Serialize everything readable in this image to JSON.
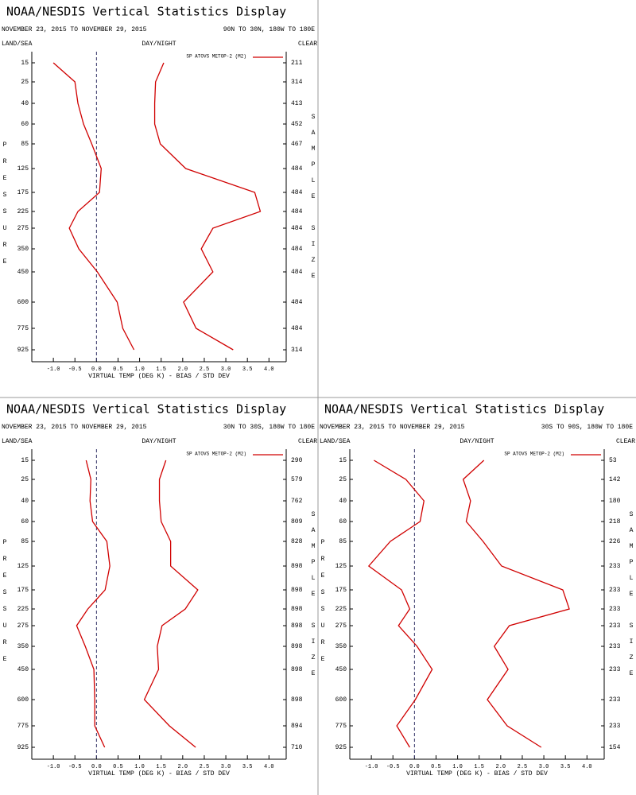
{
  "chart_data": [
    {
      "type": "line",
      "title": "NOAA/NESDIS Vertical Statistics Display",
      "subtitle": "NOVEMBER 23, 2015 TO NOVEMBER 29, 2015",
      "region": "90N TO 30N, 180W TO 180E",
      "land_sea": "LAND/SEA",
      "day_night": "DAY/NIGHT",
      "clear": "CLEAR",
      "ylabel": "PRESSURE",
      "y2label": "SAMPLE SIZE",
      "xlabel": "VIRTUAL TEMP (DEG K) - BIAS / STD DEV",
      "categories": [
        15,
        25,
        40,
        60,
        85,
        125,
        175,
        225,
        275,
        350,
        450,
        600,
        775,
        925
      ],
      "sample_size": [
        211,
        314,
        413,
        452,
        467,
        484,
        484,
        484,
        484,
        484,
        484,
        484,
        484,
        314
      ],
      "series": [
        {
          "name": "SP ATOVS METOP-2 (M2)",
          "color": "#d00000",
          "bias": [
            -1.0,
            -0.5,
            -0.43,
            -0.3,
            -0.11,
            0.11,
            0.07,
            -0.43,
            -0.63,
            -0.41,
            0.02,
            0.48,
            0.61,
            0.87
          ],
          "std_dev": [
            1.56,
            1.37,
            1.35,
            1.35,
            1.48,
            2.07,
            3.67,
            3.8,
            2.7,
            2.43,
            2.7,
            2.02,
            2.31,
            3.17
          ]
        }
      ],
      "xlim": [
        -1.5,
        4.4
      ],
      "xticks": [
        {
          "value": -1,
          "label": "-1.0"
        },
        -0.5,
        {
          "value": 0,
          "label": "0.0"
        },
        0.5,
        {
          "value": 1,
          "label": "1.0"
        },
        1.5,
        {
          "value": 2,
          "label": "2.0"
        },
        2.5,
        {
          "value": 3,
          "label": "3.0"
        },
        3.5,
        {
          "value": 4,
          "label": "4.0"
        }
      ]
    },
    {
      "type": "line",
      "title": "NOAA/NESDIS Vertical Statistics Display",
      "subtitle": "NOVEMBER 23, 2015 TO NOVEMBER 29, 2015",
      "region": "30N TO 30S, 180W TO 180E",
      "land_sea": "LAND/SEA",
      "day_night": "DAY/NIGHT",
      "clear": "CLEAR",
      "ylabel": "PRESSURE",
      "y2label": "SAMPLE SIZE",
      "xlabel": "VIRTUAL TEMP (DEG K) - BIAS / STD DEV",
      "categories": [
        15,
        25,
        40,
        60,
        85,
        125,
        175,
        225,
        275,
        350,
        450,
        600,
        775,
        925
      ],
      "sample_size": [
        290,
        579,
        762,
        809,
        828,
        898,
        898,
        898,
        898,
        898,
        898,
        898,
        894,
        710
      ],
      "series": [
        {
          "name": "SP ATOVS METOP-2 (M2)",
          "color": "#d00000",
          "bias": [
            -0.24,
            -0.13,
            -0.15,
            -0.09,
            0.24,
            0.31,
            0.2,
            -0.2,
            -0.46,
            -0.26,
            -0.06,
            -0.04,
            -0.04,
            0.19
          ],
          "std_dev": [
            1.61,
            1.46,
            1.46,
            1.5,
            1.72,
            1.72,
            2.35,
            2.06,
            1.52,
            1.41,
            1.44,
            1.11,
            1.69,
            2.3
          ]
        }
      ],
      "xlim": [
        -1.5,
        4.4
      ],
      "xticks": [
        {
          "value": -1,
          "label": "-1.0"
        },
        -0.5,
        {
          "value": 0,
          "label": "0.0"
        },
        0.5,
        {
          "value": 1,
          "label": "1.0"
        },
        1.5,
        {
          "value": 2,
          "label": "2.0"
        },
        2.5,
        {
          "value": 3,
          "label": "3.0"
        },
        3.5,
        {
          "value": 4,
          "label": "4.0"
        }
      ]
    },
    {
      "type": "line",
      "title": "NOAA/NESDIS Vertical Statistics Display",
      "subtitle": "NOVEMBER 23, 2015 TO NOVEMBER 29, 2015",
      "region": "30S TO 90S, 180W TO 180E",
      "land_sea": "LAND/SEA",
      "day_night": "DAY/NIGHT",
      "clear": "CLEAR",
      "ylabel": "PRESSURE",
      "y2label": "SAMPLE SIZE",
      "xlabel": "VIRTUAL TEMP (DEG K) - BIAS / STD DEV",
      "categories": [
        15,
        25,
        40,
        60,
        85,
        125,
        175,
        225,
        275,
        350,
        450,
        600,
        775,
        925
      ],
      "sample_size": [
        53,
        142,
        180,
        218,
        226,
        233,
        233,
        233,
        233,
        233,
        233,
        233,
        233,
        154
      ],
      "series": [
        {
          "name": "SP ATOVS METOP-2 (M2)",
          "color": "#d00000",
          "bias": [
            -0.94,
            -0.2,
            0.22,
            0.13,
            -0.56,
            -1.06,
            -0.3,
            -0.11,
            -0.37,
            0.06,
            0.41,
            0.02,
            -0.41,
            -0.11
          ],
          "std_dev": [
            1.61,
            1.13,
            1.3,
            1.2,
            1.59,
            2.02,
            3.44,
            3.59,
            2.2,
            1.85,
            2.17,
            1.69,
            2.15,
            2.94
          ]
        }
      ],
      "xlim": [
        -1.5,
        4.4
      ],
      "xticks": [
        {
          "value": -1,
          "label": "-1.0"
        },
        -0.5,
        {
          "value": 0,
          "label": "0.0"
        },
        0.5,
        {
          "value": 1,
          "label": "1.0"
        },
        1.5,
        {
          "value": 2,
          "label": "2.0"
        },
        2.5,
        {
          "value": 3,
          "label": "3.0"
        },
        3.5,
        {
          "value": 4,
          "label": "4.0"
        }
      ]
    }
  ]
}
